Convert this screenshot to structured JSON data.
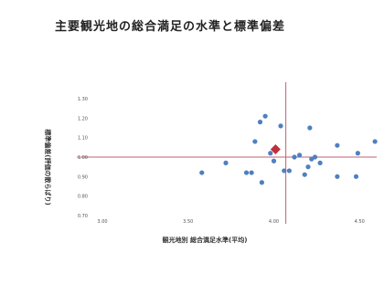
{
  "chart_data": {
    "type": "scatter",
    "title": "主要観光地の総合満足の水準と標準偏差",
    "xlabel": "観光地別 総合満足水準(平均)",
    "ylabel": "標準偏差(評価の散らばり)",
    "xlim": [
      3.0,
      4.6
    ],
    "ylim": [
      0.7,
      1.3
    ],
    "x_ticks": [
      "3.00",
      "3.50",
      "4.00",
      "4.50"
    ],
    "y_ticks": [
      "0.70",
      "0.80",
      "0.90",
      "1.00",
      "1.10",
      "1.20",
      "1.30"
    ],
    "grid": false,
    "reference_lines": {
      "x": 4.07,
      "y": 1.0
    },
    "series": [
      {
        "color": "#4f7fc0",
        "marker": "circle",
        "points": [
          {
            "x": 3.58,
            "y": 0.92
          },
          {
            "x": 3.72,
            "y": 0.97
          },
          {
            "x": 3.84,
            "y": 0.92
          },
          {
            "x": 3.87,
            "y": 0.92
          },
          {
            "x": 3.89,
            "y": 1.08
          },
          {
            "x": 3.92,
            "y": 1.18
          },
          {
            "x": 3.95,
            "y": 1.21
          },
          {
            "x": 3.93,
            "y": 0.87
          },
          {
            "x": 3.98,
            "y": 1.02
          },
          {
            "x": 4.0,
            "y": 0.98
          },
          {
            "x": 4.04,
            "y": 1.16
          },
          {
            "x": 4.06,
            "y": 0.93
          },
          {
            "x": 4.09,
            "y": 0.93
          },
          {
            "x": 4.12,
            "y": 1.0
          },
          {
            "x": 4.15,
            "y": 1.01
          },
          {
            "x": 4.18,
            "y": 0.91
          },
          {
            "x": 4.2,
            "y": 0.95
          },
          {
            "x": 4.21,
            "y": 1.15
          },
          {
            "x": 4.22,
            "y": 0.99
          },
          {
            "x": 4.24,
            "y": 1.0
          },
          {
            "x": 4.27,
            "y": 0.97
          },
          {
            "x": 4.37,
            "y": 0.9
          },
          {
            "x": 4.37,
            "y": 1.06
          },
          {
            "x": 4.48,
            "y": 0.9
          },
          {
            "x": 4.49,
            "y": 1.02
          },
          {
            "x": 4.59,
            "y": 1.08
          }
        ]
      },
      {
        "color": "#c0303a",
        "marker": "diamond",
        "points": [
          {
            "x": 4.01,
            "y": 1.04
          }
        ]
      }
    ]
  }
}
